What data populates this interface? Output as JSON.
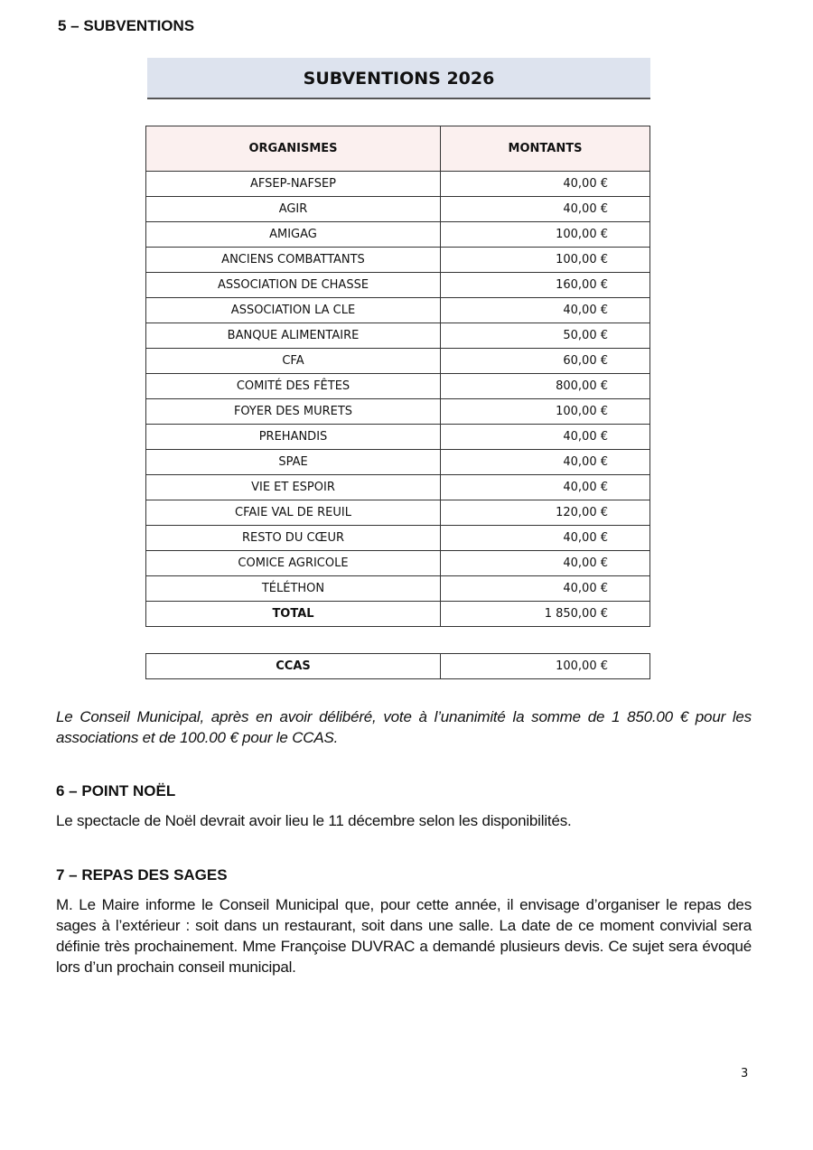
{
  "section5": {
    "heading": "5 – SUBVENTIONS",
    "banner": "SUBVENTIONS 2026",
    "table": {
      "headers": [
        "ORGANISMES",
        "MONTANTS"
      ],
      "rows": [
        [
          "AFSEP-NAFSEP",
          "40,00 €"
        ],
        [
          "AGIR",
          "40,00 €"
        ],
        [
          "AMIGAG",
          "100,00 €"
        ],
        [
          "ANCIENS COMBATTANTS",
          "100,00 €"
        ],
        [
          "ASSOCIATION DE CHASSE",
          "160,00 €"
        ],
        [
          "ASSOCIATION LA CLE",
          "40,00 €"
        ],
        [
          "BANQUE ALIMENTAIRE",
          "50,00 €"
        ],
        [
          "CFA",
          "60,00 €"
        ],
        [
          "COMITÉ DES FÊTES",
          "800,00 €"
        ],
        [
          "FOYER DES MURETS",
          "100,00 €"
        ],
        [
          "PREHANDIS",
          "40,00 €"
        ],
        [
          "SPAE",
          "40,00 €"
        ],
        [
          "VIE ET ESPOIR",
          "40,00 €"
        ],
        [
          "CFAIE VAL DE REUIL",
          "120,00 €"
        ],
        [
          "RESTO DU CŒUR",
          "40,00 €"
        ],
        [
          "COMICE AGRICOLE",
          "40,00 €"
        ],
        [
          "TÉLÉTHON",
          "40,00 €"
        ]
      ],
      "total": [
        "TOTAL",
        "1 850,00 €"
      ]
    },
    "ccas": [
      "CCAS",
      "100,00 €"
    ],
    "vote": "Le Conseil Municipal, après en avoir délibéré, vote à l’unanimité la somme de 1 850.00 € pour les associations et de 100.00 € pour le CCAS."
  },
  "section6": {
    "heading": "6 – POINT NOËL",
    "text": "Le spectacle de Noël devrait avoir lieu le 11 décembre selon les disponibilités."
  },
  "section7": {
    "heading": "7 – REPAS DES SAGES",
    "text": "M. Le Maire informe le Conseil Municipal que, pour cette année, il envisage d’organiser le repas des sages à l’extérieur : soit dans un restaurant, soit dans une salle. La date de ce moment convivial sera définie très prochainement. Mme Françoise DUVRAC a demandé plusieurs devis. Ce sujet sera évoqué lors d’un prochain conseil municipal."
  },
  "page_number": "3"
}
